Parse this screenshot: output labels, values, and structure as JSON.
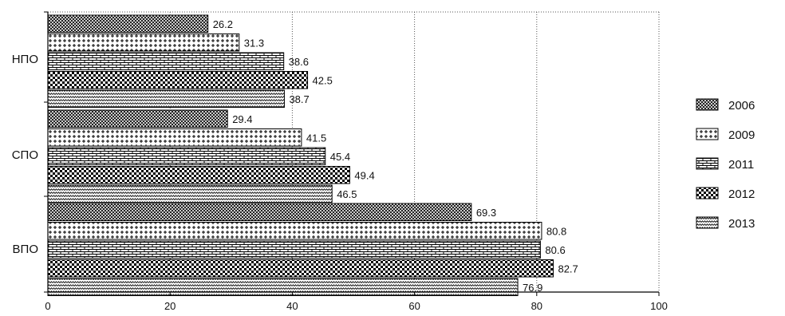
{
  "chart_data": {
    "type": "bar",
    "orientation": "horizontal",
    "categories": [
      "НПО",
      "СПО",
      "ВПО"
    ],
    "series": [
      {
        "name": "2006",
        "values": [
          26.2,
          29.4,
          69.3
        ],
        "pattern": "crosshatch"
      },
      {
        "name": "2009",
        "values": [
          31.3,
          41.5,
          80.8
        ],
        "pattern": "plus"
      },
      {
        "name": "2011",
        "values": [
          38.6,
          45.4,
          80.6
        ],
        "pattern": "brick"
      },
      {
        "name": "2012",
        "values": [
          42.5,
          49.4,
          82.7
        ],
        "pattern": "checker"
      },
      {
        "name": "2013",
        "values": [
          38.7,
          46.5,
          76.9
        ],
        "pattern": "wave"
      }
    ],
    "xlim": [
      0,
      100
    ],
    "xticks": [
      0,
      20,
      40,
      60,
      80,
      100
    ],
    "grid": "vertical-dotted",
    "legend": "right",
    "title": "",
    "xlabel": "",
    "ylabel": ""
  }
}
